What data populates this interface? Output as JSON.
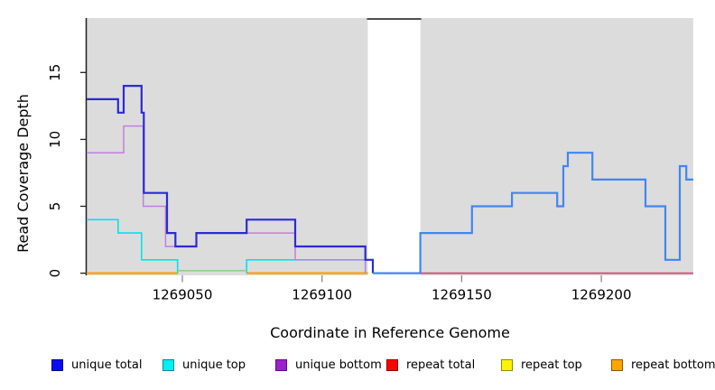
{
  "figure": {
    "y_axis": {
      "title": "Read Coverage Depth",
      "tick_labels": [
        "0",
        "5",
        "10",
        "15"
      ],
      "tick_values": [
        0,
        5,
        10,
        15
      ]
    },
    "x_axis": {
      "title": "Coordinate in Reference Genome",
      "tick_labels": [
        "1269050",
        "1269100",
        "1269150",
        "1269200"
      ],
      "tick_values": [
        1269050,
        1269100,
        1269150,
        1269200
      ]
    }
  },
  "legend": {
    "items": [
      {
        "label": "unique total",
        "fill": "#0b0bf0",
        "border": "#000080"
      },
      {
        "label": "unique top",
        "fill": "#00f0f5",
        "border": "#008b8b"
      },
      {
        "label": "unique bottom",
        "fill": "#9c22cc",
        "border": "#5c0a8a"
      },
      {
        "label": "repeat total",
        "fill": "#ff0000",
        "border": "#8b0000"
      },
      {
        "label": "repeat top",
        "fill": "#fdf403",
        "border": "#8b8b00"
      },
      {
        "label": "repeat bottom",
        "fill": "#ffa500",
        "border": "#8b5a00"
      }
    ]
  },
  "chart_data": {
    "type": "line",
    "subtype": "step-coverage",
    "title": "",
    "xlabel": "Coordinate in Reference Genome",
    "ylabel": "Read Coverage Depth",
    "xlim": [
      1269015.7,
      1269232.9
    ],
    "ylim": [
      0,
      19
    ],
    "grid": false,
    "x_ticks": [
      1269050,
      1269100,
      1269150,
      1269200
    ],
    "y_ticks": [
      0,
      5,
      10,
      15
    ],
    "background_bands": [
      {
        "x1": 1269015.7,
        "x2": 1269116.4,
        "fill": "#dcdcdc"
      },
      {
        "x1": 1269135.2,
        "x2": 1269232.9,
        "fill": "#dcdcdc"
      }
    ],
    "gap_top_line": {
      "x1": 1269116.4,
      "x2": 1269135.2,
      "color": "#4f4f4f"
    },
    "series": [
      {
        "name": "repeat top",
        "color": "#f5e600",
        "width": 2,
        "runs": [
          {
            "points": [
              [
                1269015.7,
                0
              ]
            ],
            "end": 1269048.3
          },
          {
            "points": [
              [
                1269073,
                0
              ]
            ],
            "end": 1269116.4
          }
        ]
      },
      {
        "name": "repeat total",
        "color": "#ce4a6e",
        "width": 1.8,
        "runs": [
          {
            "points": [
              [
                1269015.7,
                0
              ]
            ],
            "end": 1269048.3
          },
          {
            "points": [
              [
                1269073,
                0
              ]
            ],
            "end": 1269116.4
          },
          {
            "points": [
              [
                1269135.2,
                0
              ]
            ],
            "end": 1269232.9
          }
        ]
      },
      {
        "name": "repeat bottom",
        "color": "#ff9d00",
        "width": 2,
        "runs": [
          {
            "points": [
              [
                1269015.7,
                0
              ]
            ],
            "end": 1269048.3
          },
          {
            "points": [
              [
                1269073,
                0
              ]
            ],
            "end": 1269116.4
          }
        ]
      },
      {
        "name": "unique top",
        "color": "#00e4ec",
        "width": 1.6,
        "runs": [
          {
            "points": [
              [
                1269015.7,
                4
              ],
              [
                1269027,
                3
              ],
              [
                1269035.4,
                1
              ],
              [
                1269048.3,
                0
              ]
            ],
            "end": 1269048.3
          },
          {
            "points": [
              [
                1269073,
                0
              ],
              [
                1269073,
                1
              ],
              [
                1269115.5,
                1
              ],
              [
                1269115.5,
                0
              ]
            ],
            "end": 1269115.5
          }
        ]
      },
      {
        "name": "unique bottom",
        "color": "#c07fde",
        "width": 1.5,
        "runs": [
          {
            "points": [
              [
                1269015.7,
                9
              ],
              [
                1269029,
                11
              ],
              [
                1269036,
                5
              ],
              [
                1269044,
                2
              ],
              [
                1269055,
                3
              ],
              [
                1269090.4,
                1
              ],
              [
                1269115.5,
                0
              ]
            ],
            "end": 1269115.5
          }
        ]
      },
      {
        "name": "unique total",
        "color": "#2b2bd5",
        "width": 2.2,
        "runs": [
          {
            "points": [
              [
                1269015.7,
                13
              ],
              [
                1269027,
                12
              ],
              [
                1269029,
                14
              ],
              [
                1269035.4,
                12
              ],
              [
                1269036.2,
                6
              ],
              [
                1269044.5,
                3
              ],
              [
                1269047.5,
                2
              ],
              [
                1269055,
                3
              ],
              [
                1269073,
                4
              ],
              [
                1269090.4,
                2
              ],
              [
                1269115.5,
                1
              ],
              [
                1269118.2,
                0
              ]
            ],
            "end": 1269118.2
          }
        ]
      },
      {
        "name": "unique total right region",
        "color": "#4186f0",
        "width": 2.2,
        "runs": [
          {
            "points": [
              [
                1269118.2,
                0
              ],
              [
                1269135.2,
                3
              ],
              [
                1269153.7,
                5
              ],
              [
                1269168,
                6
              ],
              [
                1269184.2,
                5
              ],
              [
                1269186.4,
                8
              ],
              [
                1269188,
                9
              ],
              [
                1269196.8,
                7
              ],
              [
                1269215.8,
                5
              ],
              [
                1269222.9,
                1
              ],
              [
                1269228.1,
                8
              ],
              [
                1269230.4,
                7
              ]
            ],
            "end": 1269232.9
          }
        ]
      }
    ],
    "overlays": [
      {
        "name": "unique-top-zero-blend-line",
        "x1": 1269048.3,
        "x2": 1269073,
        "v": 0,
        "dy": -2.8,
        "color": "#90ce90",
        "width": 1.6
      }
    ]
  }
}
